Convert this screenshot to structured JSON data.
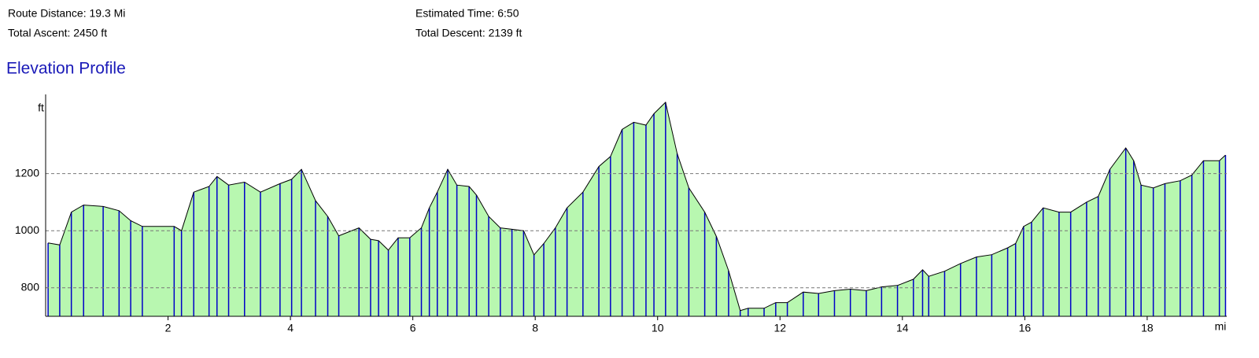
{
  "summary": [
    "Route Distance: 19.3 Mi",
    "Total Ascent: 2450 ft",
    "Estimated Time: 6:50",
    "Total Descent: 2139 ft"
  ],
  "chart_data": {
    "type": "area",
    "title": "Elevation Profile",
    "y_label": "ft",
    "x_label": "mi",
    "x": [
      0.04,
      0.23,
      0.42,
      0.62,
      0.94,
      1.2,
      1.39,
      1.58,
      2.1,
      2.22,
      2.42,
      2.67,
      2.8,
      2.99,
      3.25,
      3.51,
      3.83,
      4.02,
      4.18,
      4.41,
      4.61,
      4.79,
      5.12,
      5.31,
      5.44,
      5.6,
      5.76,
      5.95,
      6.14,
      6.27,
      6.4,
      6.57,
      6.72,
      6.92,
      7.04,
      7.24,
      7.43,
      7.62,
      7.81,
      7.98,
      8.14,
      8.33,
      8.52,
      8.78,
      9.04,
      9.23,
      9.42,
      9.61,
      9.81,
      9.94,
      10.13,
      10.32,
      10.51,
      10.77,
      10.96,
      11.16,
      11.35,
      11.48,
      11.74,
      11.93,
      12.12,
      12.38,
      12.63,
      12.89,
      13.15,
      13.41,
      13.66,
      13.92,
      14.18,
      14.33,
      14.43,
      14.69,
      14.95,
      15.21,
      15.46,
      15.72,
      15.85,
      15.98,
      16.11,
      16.3,
      16.56,
      16.75,
      17.01,
      17.2,
      17.39,
      17.65,
      17.78,
      17.9,
      18.1,
      18.29,
      18.54,
      18.73,
      18.92,
      19.18,
      19.28
    ],
    "values": [
      957,
      950,
      1065,
      1090,
      1085,
      1070,
      1035,
      1015,
      1015,
      1000,
      1135,
      1155,
      1190,
      1160,
      1170,
      1135,
      1165,
      1180,
      1215,
      1105,
      1050,
      982,
      1010,
      970,
      965,
      932,
      975,
      975,
      1010,
      1080,
      1135,
      1215,
      1160,
      1155,
      1125,
      1050,
      1010,
      1005,
      1000,
      915,
      955,
      1010,
      1080,
      1135,
      1225,
      1260,
      1355,
      1380,
      1370,
      1410,
      1450,
      1270,
      1150,
      1065,
      980,
      860,
      720,
      728,
      728,
      748,
      748,
      785,
      780,
      790,
      795,
      790,
      803,
      808,
      830,
      863,
      840,
      858,
      885,
      908,
      916,
      940,
      955,
      1015,
      1030,
      1080,
      1065,
      1065,
      1100,
      1120,
      1215,
      1290,
      1245,
      1160,
      1150,
      1165,
      1175,
      1195,
      1245,
      1245,
      1265
    ],
    "fill_color": "#b8f7b0",
    "line_color": "#000000",
    "marker_color": "#0000c8",
    "xlim": [
      0,
      19.3
    ],
    "ylim": [
      700,
      1450
    ],
    "xticks": [
      2,
      4,
      6,
      8,
      10,
      12,
      14,
      16,
      18
    ],
    "yticks": [
      800,
      1000,
      1200
    ],
    "grid": true
  }
}
